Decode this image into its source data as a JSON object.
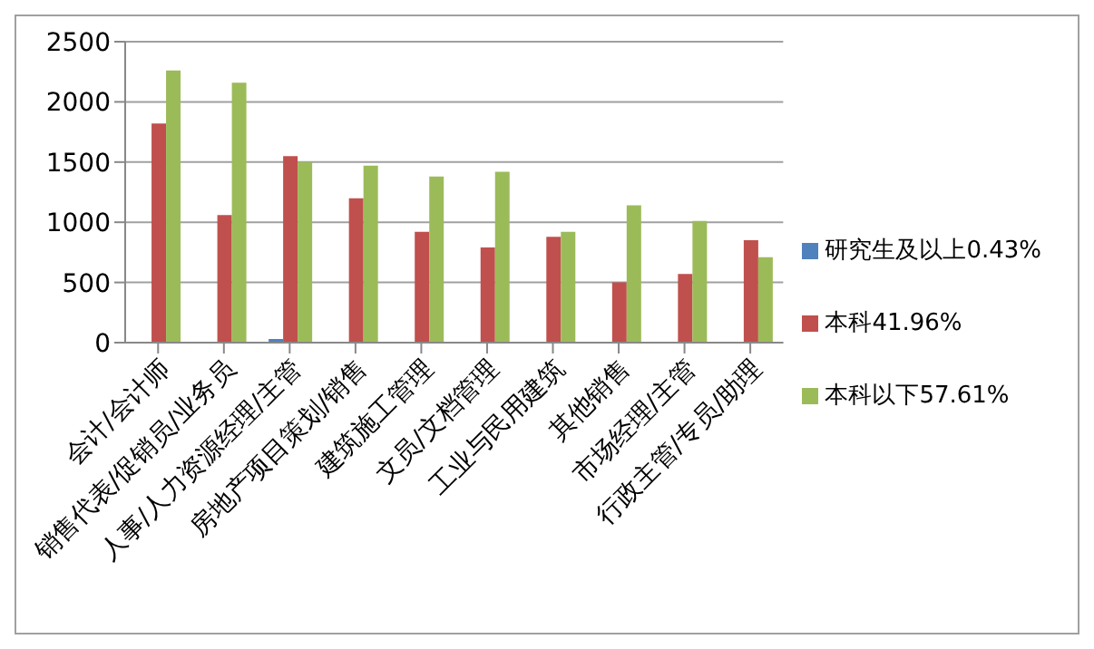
{
  "chart_data": {
    "type": "bar",
    "categories": [
      "会计/会计师",
      "销售代表/促销员/业务员",
      "人事/人力资源经理/主管",
      "房地产项目策划/销售",
      "建筑施工管理",
      "文员/文档管理",
      "工业与民用建筑",
      "其他销售",
      "市场经理/主管",
      "行政主管/专员/助理"
    ],
    "series": [
      {
        "name": "研究生及以上0.43%",
        "color": "#4f81bd",
        "values": [
          0,
          0,
          30,
          0,
          0,
          0,
          0,
          0,
          0,
          0
        ]
      },
      {
        "name": "本科41.96%",
        "color": "#c0504d",
        "values": [
          1820,
          1060,
          1550,
          1200,
          920,
          790,
          880,
          500,
          570,
          850
        ]
      },
      {
        "name": "本科以下57.61%",
        "color": "#9bbb59",
        "values": [
          2260,
          2160,
          1500,
          1470,
          1380,
          1420,
          920,
          1140,
          1010,
          710
        ]
      }
    ],
    "ylim": [
      0,
      2500
    ],
    "yticks": [
      0,
      500,
      1000,
      1500,
      2000,
      2500
    ],
    "grid": "y",
    "legend": "right"
  }
}
